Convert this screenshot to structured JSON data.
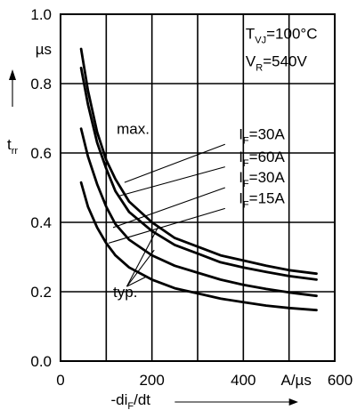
{
  "chart_data": {
    "type": "line",
    "x_tick_labels": [
      "0",
      "200",
      "400",
      "600"
    ],
    "x_unit": "A/µs",
    "x_ticks": [
      0,
      200,
      400,
      600
    ],
    "xlim": [
      0,
      600
    ],
    "y_tick_labels": [
      "0.0",
      "0.2",
      "0.4",
      "0.6",
      "0.8",
      "1.0"
    ],
    "y_unit": "µs",
    "y_ticks": [
      0,
      0.2,
      0.4,
      0.6,
      0.8,
      1.0
    ],
    "ylim": [
      0,
      1.0
    ],
    "grid": true,
    "xlabel": {
      "main": "-di",
      "sub": "F",
      "tail": "/dt"
    },
    "ylabel": {
      "main": "t",
      "sub": "rr"
    },
    "conditions": [
      {
        "main": "T",
        "sub": "VJ",
        "tail": "=100°C"
      },
      {
        "main": "V",
        "sub": "R",
        "tail": "=540V"
      }
    ],
    "series": [
      {
        "label": {
          "main": "I",
          "sub": "F",
          "tail": "=30A"
        },
        "group": "max.",
        "points": [
          [
            45,
            0.9
          ],
          [
            60,
            0.78
          ],
          [
            80,
            0.66
          ],
          [
            100,
            0.58
          ],
          [
            120,
            0.525
          ],
          [
            150,
            0.46
          ],
          [
            200,
            0.4
          ],
          [
            250,
            0.355
          ],
          [
            300,
            0.33
          ],
          [
            350,
            0.305
          ],
          [
            400,
            0.29
          ],
          [
            450,
            0.275
          ],
          [
            500,
            0.262
          ],
          [
            560,
            0.252
          ]
        ]
      },
      {
        "label": {
          "main": "I",
          "sub": "F",
          "tail": "=60A"
        },
        "group": "typ.",
        "points": [
          [
            45,
            0.845
          ],
          [
            60,
            0.74
          ],
          [
            80,
            0.63
          ],
          [
            100,
            0.555
          ],
          [
            120,
            0.49
          ],
          [
            150,
            0.43
          ],
          [
            200,
            0.375
          ],
          [
            250,
            0.335
          ],
          [
            300,
            0.31
          ],
          [
            350,
            0.285
          ],
          [
            400,
            0.27
          ],
          [
            450,
            0.257
          ],
          [
            500,
            0.245
          ],
          [
            560,
            0.235
          ]
        ]
      },
      {
        "label": {
          "main": "I",
          "sub": "F",
          "tail": "=30A"
        },
        "group": "typ.",
        "points": [
          [
            45,
            0.67
          ],
          [
            60,
            0.59
          ],
          [
            80,
            0.51
          ],
          [
            100,
            0.445
          ],
          [
            120,
            0.395
          ],
          [
            150,
            0.35
          ],
          [
            200,
            0.305
          ],
          [
            250,
            0.275
          ],
          [
            300,
            0.255
          ],
          [
            350,
            0.235
          ],
          [
            400,
            0.22
          ],
          [
            450,
            0.208
          ],
          [
            500,
            0.198
          ],
          [
            560,
            0.188
          ]
        ]
      },
      {
        "label": {
          "main": "I",
          "sub": "F",
          "tail": "=15A"
        },
        "group": "typ.",
        "points": [
          [
            45,
            0.515
          ],
          [
            60,
            0.445
          ],
          [
            80,
            0.385
          ],
          [
            100,
            0.34
          ],
          [
            120,
            0.305
          ],
          [
            150,
            0.27
          ],
          [
            200,
            0.235
          ],
          [
            250,
            0.21
          ],
          [
            300,
            0.195
          ],
          [
            350,
            0.18
          ],
          [
            400,
            0.17
          ],
          [
            450,
            0.16
          ],
          [
            500,
            0.153
          ],
          [
            560,
            0.147
          ]
        ]
      }
    ],
    "annotations": [
      "max.",
      "typ."
    ]
  }
}
